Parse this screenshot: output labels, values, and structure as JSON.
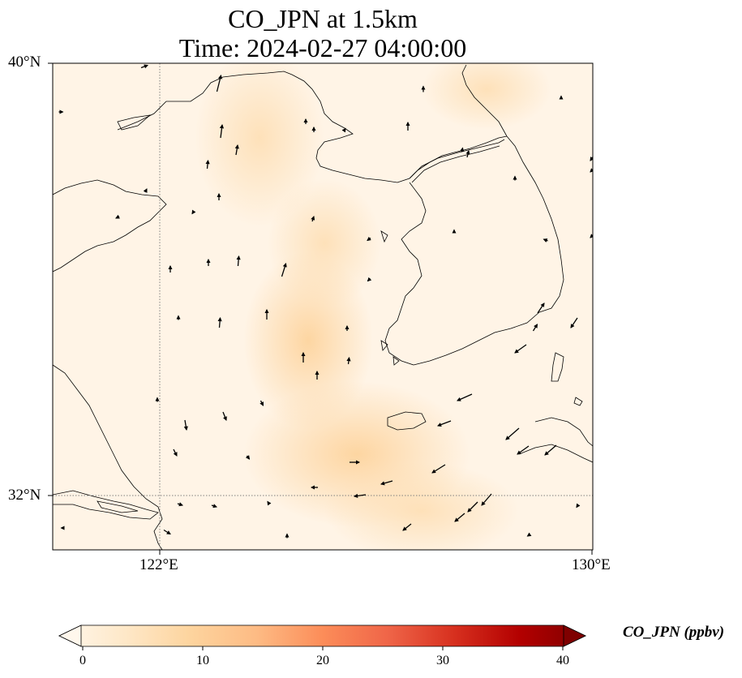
{
  "title": {
    "line1": "CO_JPN at 1.5km",
    "line2": "Time: 2024-02-27 04:00:00"
  },
  "axes": {
    "lat_labels": [
      "40°N",
      "32°N"
    ],
    "lon_labels": [
      "122°E",
      "130°E"
    ]
  },
  "colorbar": {
    "label": "CO_JPN (ppbv)",
    "ticks": [
      "0",
      "10",
      "20",
      "30",
      "40"
    ],
    "colormap": "OrRd",
    "range": [
      0,
      40
    ],
    "extend": "both"
  },
  "colors": {
    "background_low": "#fff7ec",
    "plume": "#fdd49e",
    "coast": "#000000",
    "grid": "#808080"
  },
  "map": {
    "projection": "PlateCarree",
    "lon_range": [
      120,
      130
    ],
    "lat_range": [
      31,
      40
    ],
    "gridlines": {
      "lon": [
        122
      ],
      "lat": [
        32
      ],
      "style": "dotted"
    },
    "wind_vectors": true
  }
}
